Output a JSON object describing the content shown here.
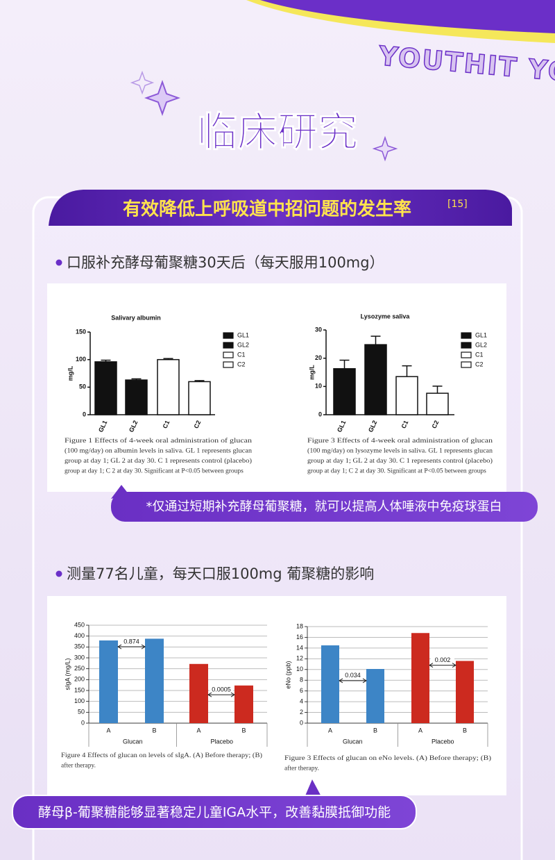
{
  "header": {
    "brand": "YOUTHIT YO",
    "title": "临床研究"
  },
  "section": {
    "banner": "有效降低上呼吸道中招问题的发生率",
    "ref": "[15]"
  },
  "study1": {
    "heading": "口服补充酵母葡聚糖30天后（每天服用100mg）",
    "note": "*仅通过短期补充酵母葡聚糖，就可以提高人体唾液中免疫球蛋白"
  },
  "study2": {
    "heading": "测量77名儿童，每天口服100mg 葡聚糖的影响",
    "note": "酵母β-葡聚糖能够显著稳定儿童IGA水平，改善黏膜抵御功能"
  },
  "chart_data": [
    {
      "type": "bar",
      "title": "Salivary albumin",
      "y_label": "mg/L",
      "categories": [
        "GL1",
        "GL2",
        "C1",
        "C2"
      ],
      "values": [
        96,
        63,
        100,
        60
      ],
      "errors": [
        3,
        2,
        2,
        2
      ],
      "colors": [
        "#111111",
        "#111111",
        "#ffffff",
        "#ffffff"
      ],
      "ylim": [
        0,
        150
      ],
      "yticks": [
        0,
        50,
        100,
        150
      ],
      "grid": false,
      "legend": true,
      "caption": [
        "Figure 1 Effects of 4-week oral administration of glucan",
        "(100 mg/day) on albumin levels in saliva. GL 1 represents glucan",
        "group at day 1; GL 2 at day 30. C 1 represents control (placebo)",
        "group at day 1; C 2 at day 30. Significant at P<0.05 between groups"
      ]
    },
    {
      "type": "bar",
      "title": "Lysozyme saliva",
      "y_label": "mg/L",
      "categories": [
        "GL1",
        "GL2",
        "C1",
        "C2"
      ],
      "values": [
        16.3,
        24.8,
        13.5,
        7.6
      ],
      "errors": [
        3,
        3,
        3.8,
        2.5
      ],
      "colors": [
        "#111111",
        "#111111",
        "#ffffff",
        "#ffffff"
      ],
      "ylim": [
        0,
        30
      ],
      "yticks": [
        0,
        10,
        20,
        30
      ],
      "grid": false,
      "legend": true,
      "caption": [
        "Figure 3 Effects of 4-week oral administration of glucan",
        "(100 mg/day) on lysozyme levels in saliva. GL 1 represents glucan",
        "group at day 1; GL 2 at day 30. C 1 represents control (placebo)",
        "group at day 1; C 2 at day 30. Significant at P<0.05 between groups"
      ]
    },
    {
      "type": "bar",
      "y_label": "sIgA (mg/L)",
      "categories": [
        "A",
        "B",
        "A",
        "B"
      ],
      "groups": [
        "Glucan",
        "Placebo"
      ],
      "values": [
        380,
        388,
        272,
        173
      ],
      "colors": [
        "#3d85c6",
        "#3d85c6",
        "#cc2a1f",
        "#cc2a1f"
      ],
      "ylim": [
        0,
        450
      ],
      "yticks": [
        0,
        50,
        100,
        150,
        200,
        250,
        300,
        350,
        400,
        450
      ],
      "grid": true,
      "legend": false,
      "annotations": [
        "0.874",
        "0.0005"
      ],
      "caption": [
        "Figure 4 Effects of glucan on levels of sIgA. (A) Before therapy; (B)",
        "after therapy."
      ]
    },
    {
      "type": "bar",
      "y_label": "eNo (ppb)",
      "categories": [
        "A",
        "B",
        "A",
        "B"
      ],
      "groups": [
        "Glucan",
        "Placebo"
      ],
      "values": [
        14.5,
        10.1,
        16.8,
        11.6
      ],
      "colors": [
        "#3d85c6",
        "#3d85c6",
        "#cc2a1f",
        "#cc2a1f"
      ],
      "ylim": [
        0,
        18
      ],
      "yticks": [
        0,
        2,
        4,
        6,
        8,
        10,
        12,
        14,
        16,
        18
      ],
      "grid": true,
      "legend": false,
      "annotations": [
        "0.034",
        "0.002"
      ],
      "caption": [
        "Figure 3 Effects of glucan on eNo levels. (A) Before therapy; (B)",
        "after therapy."
      ]
    }
  ]
}
